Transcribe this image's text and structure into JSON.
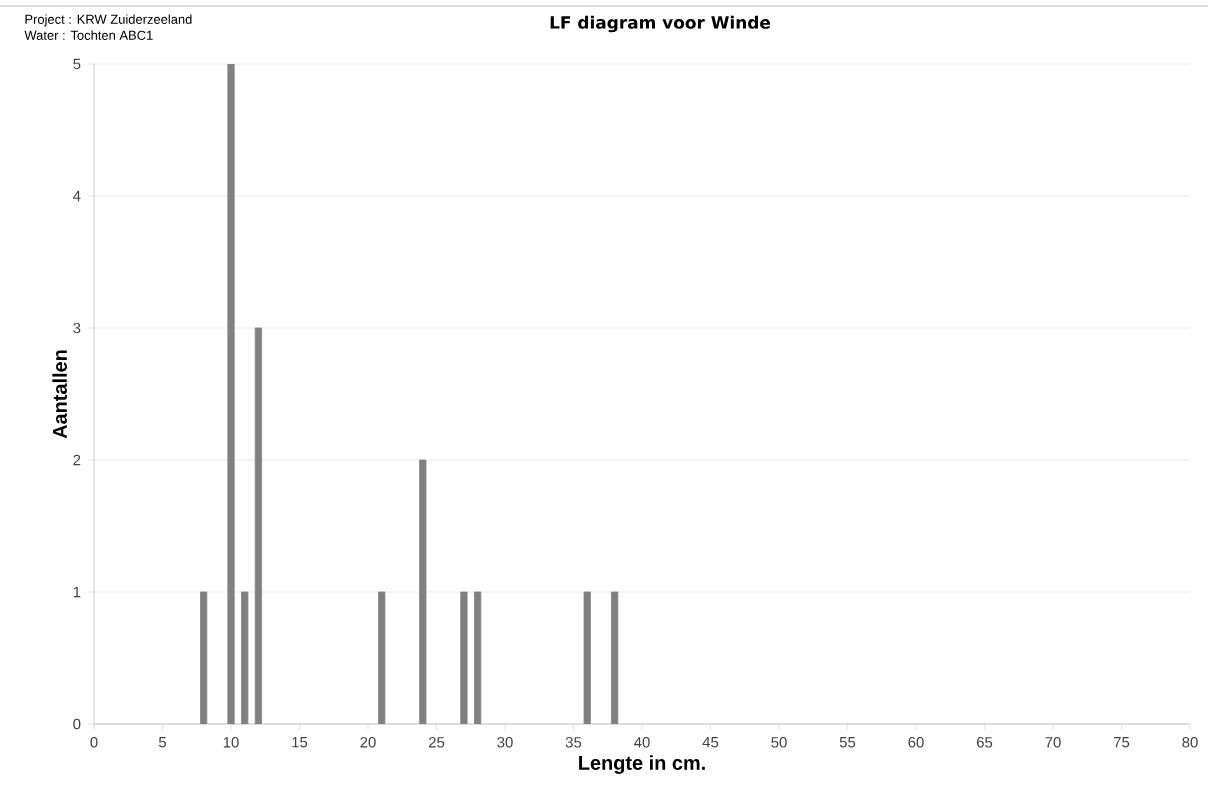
{
  "chart_data": {
    "type": "bar",
    "title": "LF diagram voor Winde",
    "xlabel": "Lengte in cm.",
    "ylabel": "Aantallen",
    "annotations": [
      "Project    : KRW Zuiderzeeland",
      "Water      : Tochten ABC1"
    ],
    "x": [
      8,
      10,
      11,
      12,
      21,
      24,
      27,
      28,
      36,
      38
    ],
    "values": [
      1,
      5,
      1,
      3,
      1,
      2,
      1,
      1,
      1,
      1
    ],
    "color": "#808080",
    "xlim": [
      0,
      80
    ],
    "xticks": [
      0,
      5,
      10,
      15,
      20,
      25,
      30,
      35,
      40,
      45,
      50,
      55,
      60,
      65,
      70,
      75,
      80
    ],
    "ylim": [
      0,
      5
    ],
    "yticks": [
      0,
      1,
      2,
      3,
      4,
      5
    ],
    "grid": "y"
  }
}
